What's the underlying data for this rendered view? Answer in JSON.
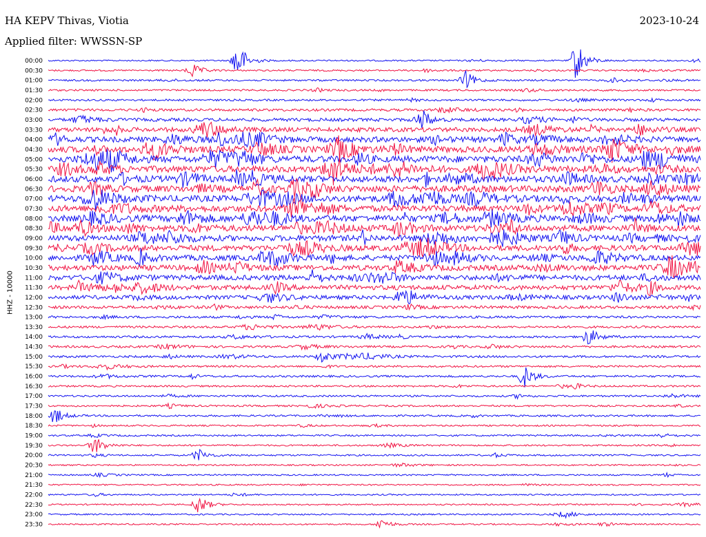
{
  "header": {
    "station": "HA KEPV Thivas, Viotia",
    "date": "2023-10-24",
    "filter": "Applied filter: WWSSN-SP"
  },
  "axis_label": "HHZ - 10000",
  "colors": {
    "even": "#1010f0",
    "odd": "#f01040",
    "background": "#ffffff"
  },
  "chart_data": {
    "type": "line",
    "title": "",
    "ylabel": "HHZ - 10000",
    "rows": [
      "00:00",
      "00:30",
      "01:00",
      "01:30",
      "02:00",
      "02:30",
      "03:00",
      "03:30",
      "04:00",
      "04:30",
      "05:00",
      "05:30",
      "06:00",
      "06:30",
      "07:00",
      "07:30",
      "08:00",
      "08:30",
      "09:00",
      "09:30",
      "10:00",
      "10:30",
      "11:00",
      "11:30",
      "12:00",
      "12:30",
      "13:00",
      "13:30",
      "14:00",
      "14:30",
      "15:00",
      "15:30",
      "16:00",
      "16:30",
      "17:00",
      "17:30",
      "18:00",
      "18:30",
      "19:00",
      "19:30",
      "20:00",
      "20:30",
      "21:00",
      "21:30",
      "22:00",
      "22:30",
      "23:00",
      "23:30"
    ],
    "activity": [
      0.8,
      0.9,
      1.0,
      1.0,
      1.1,
      1.4,
      1.8,
      2.4,
      3.0,
      3.4,
      3.6,
      3.6,
      3.5,
      3.6,
      3.6,
      3.5,
      3.4,
      3.3,
      3.2,
      3.1,
      3.0,
      3.0,
      2.8,
      2.6,
      2.2,
      1.6,
      1.3,
      1.2,
      1.2,
      1.2,
      1.2,
      1.1,
      1.1,
      1.0,
      1.0,
      1.0,
      1.0,
      0.9,
      0.9,
      0.9,
      0.9,
      0.8,
      0.8,
      0.8,
      0.8,
      0.8,
      0.8,
      0.8
    ],
    "events": [
      {
        "row": 1,
        "x": 0.22,
        "amp": 1.8
      },
      {
        "row": 2,
        "x": 0.64,
        "amp": 2.2
      },
      {
        "row": 0,
        "x": 0.29,
        "amp": 5.0
      },
      {
        "row": 0,
        "x": 0.81,
        "amp": 5.0
      },
      {
        "row": 6,
        "x": 0.57,
        "amp": 1.6
      },
      {
        "row": 24,
        "x": 0.54,
        "amp": 2.0
      },
      {
        "row": 28,
        "x": 0.83,
        "amp": 1.6
      },
      {
        "row": 30,
        "x": 0.42,
        "amp": 1.6
      },
      {
        "row": 32,
        "x": 0.73,
        "amp": 2.2
      },
      {
        "row": 36,
        "x": 0.01,
        "amp": 2.0
      },
      {
        "row": 39,
        "x": 0.07,
        "amp": 1.8
      },
      {
        "row": 40,
        "x": 0.23,
        "amp": 1.6
      },
      {
        "row": 45,
        "x": 0.23,
        "amp": 2.4
      },
      {
        "row": 47,
        "x": 0.51,
        "amp": 1.4
      }
    ]
  }
}
